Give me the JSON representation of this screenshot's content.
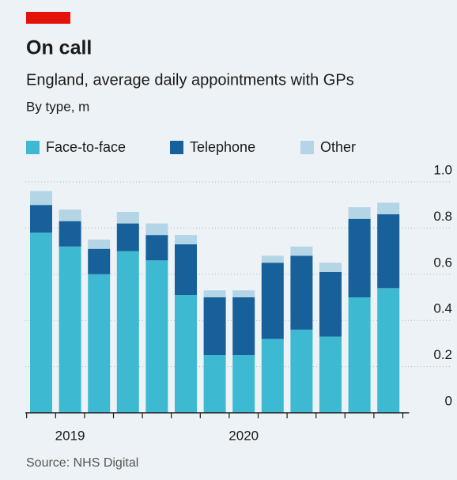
{
  "chart_data": {
    "type": "stacked_bar",
    "title": "On call",
    "subtitle": "England, average daily appointments with GPs",
    "unit_label": "By type, m",
    "source": "Source: NHS Digital",
    "categories": [
      null,
      "2019",
      null,
      null,
      null,
      null,
      null,
      "2020",
      null,
      null,
      null,
      null,
      null
    ],
    "series": [
      {
        "name": "Face-to-face",
        "color": "#3dbad1",
        "values": [
          0.78,
          0.72,
          0.6,
          0.7,
          0.66,
          0.51,
          0.25,
          0.25,
          0.32,
          0.36,
          0.33,
          0.5,
          0.54
        ]
      },
      {
        "name": "Telephone",
        "color": "#17609a",
        "values": [
          0.12,
          0.11,
          0.11,
          0.12,
          0.11,
          0.22,
          0.25,
          0.25,
          0.33,
          0.32,
          0.28,
          0.34,
          0.32
        ]
      },
      {
        "name": "Other",
        "color": "#b3d5e6",
        "values": [
          0.06,
          0.05,
          0.04,
          0.05,
          0.05,
          0.04,
          0.03,
          0.03,
          0.03,
          0.04,
          0.04,
          0.05,
          0.05
        ]
      }
    ],
    "ylim": [
      0,
      1
    ],
    "yticks": [
      0,
      0.2,
      0.4,
      0.6,
      0.8,
      {
        "value": 1,
        "label": "1.0"
      }
    ],
    "grid": true,
    "legend": "top-left"
  }
}
